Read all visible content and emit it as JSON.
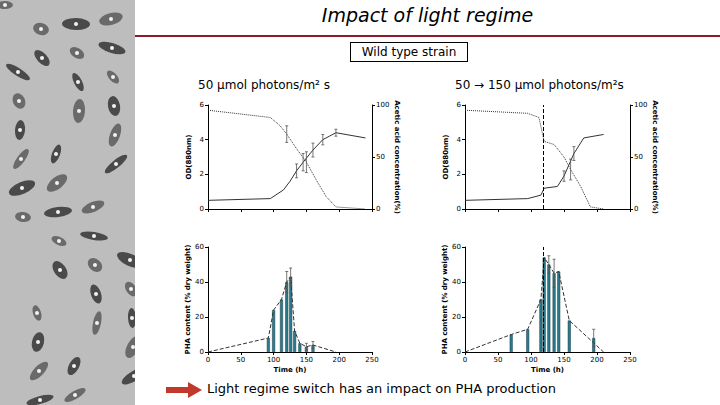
{
  "slide": {
    "title": "Impact of light regime",
    "strain": "Wild type strain",
    "conclusion": "Light regime switch has an impact on PHA production"
  },
  "chart_data": [
    {
      "type": "line",
      "title": "50 µmol photons/m² s",
      "xlim": [
        0,
        250
      ],
      "xticks": [
        0,
        50,
        100,
        150,
        200,
        250
      ],
      "ylim": [
        0,
        6
      ],
      "yticks": [
        0,
        2,
        4,
        6
      ],
      "ylabel": "OD(880nm)",
      "y2lim": [
        0,
        100
      ],
      "y2ticks": [
        0,
        50,
        100
      ],
      "y2label": "Acetic acid concentration(%)",
      "tick_labels": "y",
      "series": [
        {
          "color": "#333333",
          "line_style": "solid",
          "marker": "none",
          "x": [
            0,
            95,
            115,
            125,
            135,
            145,
            160,
            175,
            195,
            240
          ],
          "values": [
            0.5,
            0.6,
            1.1,
            1.6,
            2.2,
            2.7,
            3.4,
            4.0,
            4.4,
            4.1
          ],
          "errors": [
            null,
            null,
            null,
            null,
            0.4,
            0.5,
            0.4,
            0.3,
            0.2,
            null
          ]
        },
        {
          "color": "#333333",
          "line_style": "dotted",
          "marker": "none",
          "axis": "y2",
          "x": [
            0,
            95,
            110,
            120,
            135,
            150,
            165,
            180,
            195,
            240
          ],
          "values": [
            95,
            88,
            80,
            72,
            58,
            45,
            28,
            12,
            2,
            0
          ],
          "errors": [
            null,
            null,
            null,
            8,
            null,
            10,
            null,
            null,
            null,
            null
          ]
        }
      ]
    },
    {
      "type": "line",
      "title": "50 → 150 µmol photons/m²s",
      "xlim": [
        0,
        250
      ],
      "xticks": [
        0,
        50,
        100,
        150,
        200,
        250
      ],
      "ylim": [
        0,
        6
      ],
      "yticks": [
        0,
        2,
        4,
        6
      ],
      "ylabel": "OD(880nm)",
      "y2lim": [
        0,
        100
      ],
      "y2ticks": [
        0,
        50,
        100
      ],
      "y2label": "Acetic acid concentration(%)",
      "tick_labels": "y",
      "switch_time": 118,
      "series": [
        {
          "color": "#333333",
          "line_style": "solid",
          "marker": "none",
          "x": [
            0,
            95,
            115,
            120,
            140,
            150,
            165,
            180,
            210
          ],
          "values": [
            0.5,
            0.6,
            0.8,
            1.2,
            1.3,
            1.9,
            3.2,
            4.1,
            4.3
          ],
          "errors": [
            null,
            null,
            null,
            null,
            null,
            0.3,
            0.4,
            null,
            null
          ]
        },
        {
          "color": "#333333",
          "line_style": "dotted",
          "marker": "none",
          "axis": "y2",
          "x": [
            0,
            95,
            112,
            120,
            135,
            150,
            160,
            175,
            190,
            210
          ],
          "values": [
            95,
            92,
            88,
            65,
            62,
            50,
            38,
            22,
            2,
            0
          ],
          "errors": [
            null,
            null,
            null,
            null,
            null,
            null,
            10,
            null,
            null,
            null
          ]
        }
      ]
    },
    {
      "type": "bar",
      "xlabel": "Time (h)",
      "ylabel": "PHA content (% dry weight)",
      "xlim": [
        0,
        250
      ],
      "xticks": [
        0,
        50,
        100,
        150,
        200,
        250
      ],
      "ylim": [
        0,
        60
      ],
      "yticks": [
        0,
        20,
        40,
        60
      ],
      "series": [
        {
          "type": "bar",
          "color": "#2b7a8c",
          "x": [
            92,
            100,
            112,
            120,
            126,
            132,
            140,
            150,
            160
          ],
          "values": [
            8,
            24,
            30,
            40,
            43,
            12,
            5,
            3,
            4
          ],
          "errors": [
            null,
            null,
            null,
            6,
            5,
            null,
            null,
            2,
            2
          ]
        },
        {
          "type": "line",
          "color": "#333333",
          "line_style": "dashed",
          "marker": "none",
          "x": [
            0,
            92,
            100,
            112,
            120,
            126,
            132,
            140,
            150,
            160,
            195
          ],
          "values": [
            0,
            8,
            24,
            30,
            40,
            43,
            12,
            5,
            3,
            4,
            0
          ]
        }
      ]
    },
    {
      "type": "bar",
      "xlabel": "Time (h)",
      "ylabel": "PHA content (% dry weight)",
      "xlim": [
        0,
        250
      ],
      "xticks": [
        0,
        50,
        100,
        150,
        200,
        250
      ],
      "ylim": [
        0,
        60
      ],
      "yticks": [
        0,
        20,
        40,
        60
      ],
      "switch_time": 118,
      "series": [
        {
          "type": "bar",
          "color": "#2b7a8c",
          "x": [
            70,
            95,
            115,
            120,
            127,
            135,
            142,
            158,
            195
          ],
          "values": [
            10,
            13,
            30,
            54,
            50,
            45,
            46,
            18,
            8
          ],
          "errors": [
            null,
            null,
            null,
            null,
            5,
            8,
            null,
            null,
            5
          ]
        },
        {
          "type": "line",
          "color": "#333333",
          "line_style": "dashed",
          "marker": "none",
          "x": [
            0,
            70,
            95,
            115,
            120,
            127,
            135,
            142,
            158,
            210
          ],
          "values": [
            0,
            10,
            13,
            30,
            54,
            50,
            45,
            46,
            18,
            0
          ]
        }
      ]
    }
  ]
}
